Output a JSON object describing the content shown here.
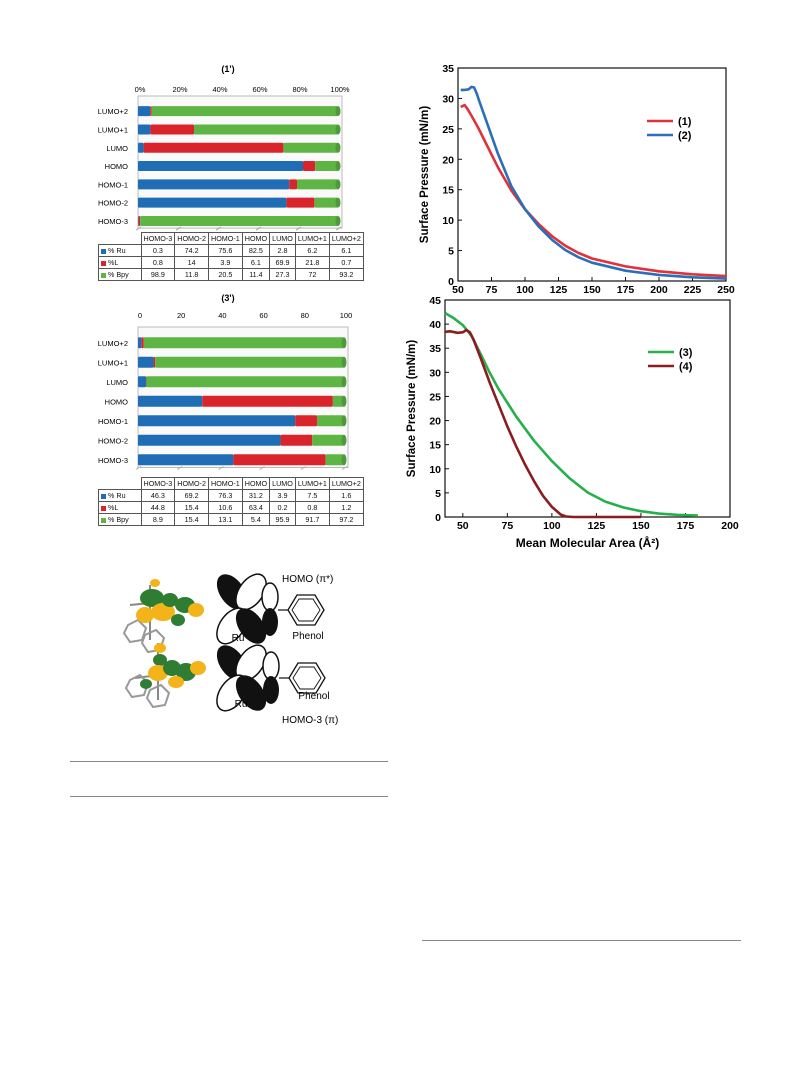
{
  "colors": {
    "ru": "#1f6db5",
    "l": "#d9242b",
    "bpy": "#5fb544",
    "s1": "#e0323a",
    "s2": "#2a6fb8",
    "s3": "#26b04a",
    "s4": "#8b1c1f"
  },
  "chart_data": [
    {
      "id": "c1",
      "type": "bar",
      "orientation": "horizontal",
      "stacked": true,
      "title": "(1')",
      "xlim": [
        0,
        100
      ],
      "x_ticks": [
        "0%",
        "20%",
        "40%",
        "60%",
        "80%",
        "100%"
      ],
      "categories": [
        "HOMO-3",
        "HOMO-2",
        "HOMO-1",
        "HOMO",
        "LUMO",
        "LUMO+1",
        "LUMO+2"
      ],
      "series": [
        {
          "name": "% Ru",
          "values": [
            0.3,
            74.2,
            75.6,
            82.5,
            2.8,
            6.2,
            6.1
          ]
        },
        {
          "name": "%L",
          "values": [
            0.8,
            14,
            3.9,
            6.1,
            69.9,
            21.8,
            0.7
          ]
        },
        {
          "name": "% Bpy",
          "values": [
            98.9,
            11.8,
            20.5,
            11.4,
            27.3,
            72,
            93.2
          ]
        }
      ]
    },
    {
      "id": "c2",
      "type": "bar",
      "orientation": "horizontal",
      "stacked": true,
      "title": "(3')",
      "xlim": [
        0,
        100
      ],
      "x_ticks": [
        "0",
        "20",
        "40",
        "60",
        "80",
        "100"
      ],
      "categories": [
        "HOMO-3",
        "HOMO-2",
        "HOMO-1",
        "HOMO",
        "LUMO",
        "LUMO+1",
        "LUMO+2"
      ],
      "series": [
        {
          "name": "% Ru",
          "values": [
            46.3,
            69.2,
            76.3,
            31.2,
            3.9,
            7.5,
            1.6
          ]
        },
        {
          "name": "%L",
          "values": [
            44.8,
            15.4,
            10.6,
            63.4,
            0.2,
            0.8,
            1.2
          ]
        },
        {
          "name": "% Bpy",
          "values": [
            8.9,
            15.4,
            13.1,
            5.4,
            95.9,
            91.7,
            97.2
          ]
        }
      ]
    },
    {
      "id": "c3",
      "type": "line",
      "ylabel": "Surface Pressure (mN/m)",
      "xlim": [
        50,
        250
      ],
      "ylim": [
        0,
        35
      ],
      "x_ticks": [
        50,
        75,
        100,
        125,
        150,
        175,
        200,
        225,
        250
      ],
      "y_ticks": [
        0,
        5,
        10,
        15,
        20,
        25,
        30,
        35
      ],
      "legend": "top-right",
      "series": [
        {
          "name": "(1)",
          "x": [
            52,
            55,
            57,
            60,
            65,
            70,
            75,
            80,
            90,
            100,
            110,
            120,
            130,
            140,
            150,
            175,
            200,
            225,
            250
          ],
          "y": [
            28.6,
            28.9,
            28.3,
            27.2,
            25.2,
            23.0,
            20.8,
            18.6,
            14.8,
            11.8,
            9.4,
            7.4,
            5.8,
            4.6,
            3.7,
            2.4,
            1.6,
            1.1,
            0.8
          ]
        },
        {
          "name": "(2)",
          "x": [
            52,
            55,
            58,
            60,
            62,
            64,
            66,
            70,
            75,
            80,
            90,
            100,
            110,
            120,
            130,
            140,
            150,
            175,
            200,
            225,
            250
          ],
          "y": [
            31.4,
            31.4,
            31.5,
            31.9,
            31.8,
            30.8,
            29.5,
            27.0,
            23.9,
            20.8,
            15.5,
            11.8,
            9.0,
            6.8,
            5.1,
            3.9,
            3.0,
            1.7,
            1.0,
            0.6,
            0.4
          ]
        }
      ]
    },
    {
      "id": "c4",
      "type": "line",
      "ylabel": "Surface Pressure (mN/m)",
      "xlabel": "Mean Molecular Area (Å²)",
      "xlim": [
        40,
        200
      ],
      "ylim": [
        0,
        45
      ],
      "x_ticks": [
        50,
        75,
        100,
        125,
        150,
        175,
        200
      ],
      "y_ticks": [
        0,
        5,
        10,
        15,
        20,
        25,
        30,
        35,
        40,
        45
      ],
      "legend": "top-right",
      "series": [
        {
          "name": "(3)",
          "x": [
            40,
            45,
            50,
            55,
            60,
            65,
            70,
            80,
            90,
            100,
            110,
            120,
            130,
            140,
            150,
            160,
            170,
            182
          ],
          "y": [
            42.3,
            41.2,
            39.8,
            37.5,
            33.8,
            30.0,
            26.6,
            20.8,
            15.8,
            11.6,
            8.0,
            5.1,
            3.2,
            2.0,
            1.2,
            0.7,
            0.45,
            0.3
          ]
        },
        {
          "name": "(4)",
          "x": [
            40,
            43,
            47,
            50,
            52,
            54,
            56,
            60,
            65,
            70,
            75,
            80,
            85,
            90,
            95,
            100,
            105,
            108,
            112,
            120,
            130,
            150
          ],
          "y": [
            38.4,
            38.5,
            38.2,
            38.3,
            38.8,
            38.3,
            36.8,
            33.0,
            28.0,
            23.4,
            18.8,
            14.6,
            10.8,
            7.4,
            4.4,
            2.1,
            0.5,
            0.1,
            0.0,
            0.0,
            0.0,
            0.0
          ]
        }
      ]
    }
  ],
  "table1": {
    "header": [
      "HOMO-3",
      "HOMO-2",
      "HOMO-1",
      "HOMO",
      "LUMO",
      "LUMO+1",
      "LUMO+2"
    ],
    "rows": [
      {
        "label": "% Ru",
        "cells": [
          "0.3",
          "74.2",
          "75.6",
          "82.5",
          "2.8",
          "6.2",
          "6.1"
        ]
      },
      {
        "label": "%L",
        "cells": [
          "0.8",
          "14",
          "3.9",
          "6.1",
          "69.9",
          "21.8",
          "0.7"
        ]
      },
      {
        "label": "% Bpy",
        "cells": [
          "98.9",
          "11.8",
          "20.5",
          "11.4",
          "27.3",
          "72",
          "93.2"
        ]
      }
    ]
  },
  "table2": {
    "header": [
      "HOMO-3",
      "HOMO-2",
      "HOMO-1",
      "HOMO",
      "LUMO",
      "LUMO+1",
      "LUMO+2"
    ],
    "rows": [
      {
        "label": "% Ru",
        "cells": [
          "46.3",
          "69.2",
          "76.3",
          "31.2",
          "3.9",
          "7.5",
          "1.6"
        ]
      },
      {
        "label": "%L",
        "cells": [
          "44.8",
          "15.4",
          "10.6",
          "63.4",
          "0.2",
          "0.8",
          "1.2"
        ]
      },
      {
        "label": "% Bpy",
        "cells": [
          "8.9",
          "15.4",
          "13.1",
          "5.4",
          "95.9",
          "91.7",
          "97.2"
        ]
      }
    ]
  },
  "orbitals": {
    "top_label": "HOMO (π*)",
    "top_ru": "Ru",
    "top_phenol": "Phenol",
    "bottom_ru": "Ru",
    "bottom_phenol": "Phenol",
    "bottom_label": "HOMO-3 (π)"
  }
}
